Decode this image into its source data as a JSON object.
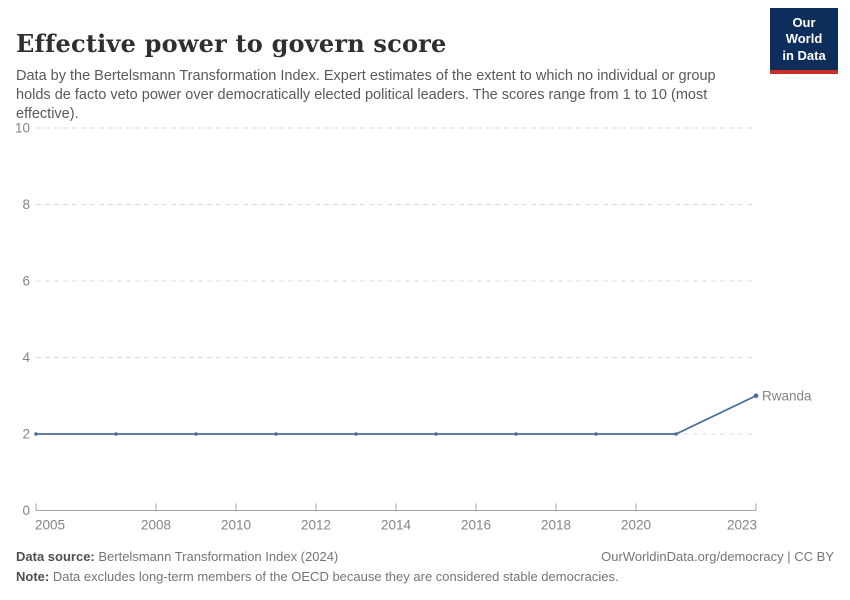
{
  "header": {
    "title": "Effective power to govern score",
    "subtitle": "Data by the Bertelsmann Transformation Index. Expert estimates of the extent to which no individual or group holds de facto veto power over democratically elected political leaders. The scores range from 1 to 10 (most effective).",
    "logo": {
      "line1": "Our World",
      "line2": "in Data",
      "bg_color": "#0d2e5b",
      "accent_color": "#cc2e28"
    }
  },
  "chart_data": {
    "type": "line",
    "title": "Effective power to govern score",
    "x": [
      2005,
      2007,
      2009,
      2011,
      2013,
      2015,
      2017,
      2019,
      2021,
      2023
    ],
    "series": [
      {
        "name": "Rwanda",
        "values": [
          2,
          2,
          2,
          2,
          2,
          2,
          2,
          2,
          2,
          3
        ],
        "color": "#4c6a9c"
      }
    ],
    "xlim": [
      2005,
      2023
    ],
    "ylim": [
      0,
      10
    ],
    "xticks": [
      2005,
      2008,
      2010,
      2012,
      2014,
      2016,
      2018,
      2020,
      2023
    ],
    "yticks": [
      0,
      2,
      4,
      6,
      8,
      10
    ],
    "grid": "horizontal-dashed",
    "grid_color": "#dcdcdc",
    "axis_color": "#a5a5a5",
    "tick_label_color": "#858585",
    "legend_position": "end-of-line-label"
  },
  "footer": {
    "source_label": "Data source:",
    "source_text": " Bertelsmann Transformation Index (2024)",
    "link_text": "OurWorldinData.org/democracy | CC BY",
    "note_label": "Note:",
    "note_text": " Data excludes long-term members of the OECD because they are considered stable democracies."
  }
}
